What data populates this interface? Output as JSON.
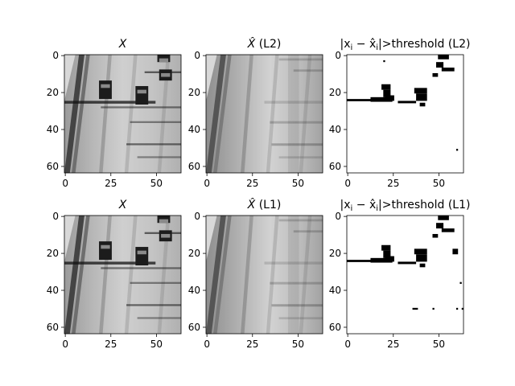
{
  "chart_data": [
    {
      "type": "image",
      "title_math": "X",
      "title_hat": false,
      "title_suffix": "",
      "xticks": [
        0,
        25,
        50
      ],
      "yticks": [
        0,
        20,
        40,
        60
      ],
      "extent": [
        0,
        64
      ],
      "content": "road-original"
    },
    {
      "type": "image",
      "title_math": "X",
      "title_hat": true,
      "title_suffix": " (L2)",
      "xticks": [
        0,
        25,
        50
      ],
      "yticks": [
        0,
        20,
        40,
        60
      ],
      "extent": [
        0,
        64
      ],
      "content": "road-reconstruction"
    },
    {
      "type": "image",
      "title_prefix": "|x",
      "title_sub": "i",
      "title_mid": " − x̂",
      "title_sub2": "i",
      "title_suffix": "|>threshold (L2)",
      "xticks": [
        0,
        25,
        50
      ],
      "yticks": [
        0,
        20,
        40,
        60
      ],
      "extent": [
        0,
        64
      ],
      "content": "threshold-mask"
    },
    {
      "type": "image",
      "title_math": "X",
      "title_hat": false,
      "title_suffix": "",
      "xticks": [
        0,
        25,
        50
      ],
      "yticks": [
        0,
        20,
        40,
        60
      ],
      "extent": [
        0,
        64
      ],
      "content": "road-original"
    },
    {
      "type": "image",
      "title_math": "X",
      "title_hat": true,
      "title_suffix": " (L1)",
      "xticks": [
        0,
        25,
        50
      ],
      "yticks": [
        0,
        20,
        40,
        60
      ],
      "extent": [
        0,
        64
      ],
      "content": "road-reconstruction"
    },
    {
      "type": "image",
      "title_prefix": "|x",
      "title_sub": "i",
      "title_mid": " − x̂",
      "title_sub2": "i",
      "title_suffix": "|>threshold (L1)",
      "xticks": [
        0,
        25,
        50
      ],
      "yticks": [
        0,
        20,
        40,
        60
      ],
      "extent": [
        0,
        64
      ],
      "content": "threshold-mask"
    }
  ]
}
